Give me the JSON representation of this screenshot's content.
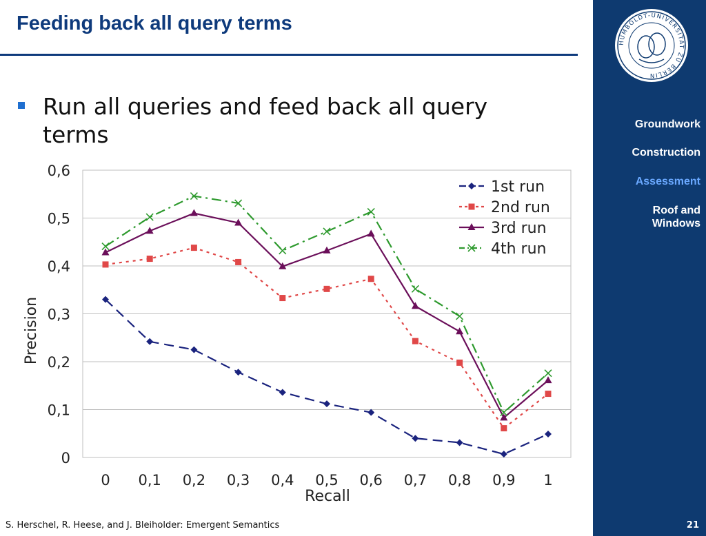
{
  "slide": {
    "title": "Feeding back all query terms",
    "bullet": "Run all queries and feed back all query terms",
    "footer": "S. Herschel, R. Heese, and J. Bleiholder: Emergent Semantics",
    "page_number": "21"
  },
  "sidebar": {
    "nav": [
      {
        "label": "Groundwork",
        "active": false
      },
      {
        "label": "Construction",
        "active": false
      },
      {
        "label": "Assessment",
        "active": true
      },
      {
        "label": "Roof and Windows",
        "active": false
      }
    ],
    "seal_text": "HUMBOLDT-UNIVERSITÄT ZU BERLIN"
  },
  "colors": {
    "title": "#0e3a7c",
    "sidebar": "#0e3a70",
    "active_nav": "#6aa8ff",
    "bullet": "#1f6fd0"
  },
  "chart_data": {
    "type": "line",
    "title": "",
    "xlabel": "Recall",
    "ylabel": "Precision",
    "categories": [
      "0",
      "0,1",
      "0,2",
      "0,3",
      "0,4",
      "0,5",
      "0,6",
      "0,7",
      "0,8",
      "0,9",
      "1"
    ],
    "yticks": [
      "0",
      "0,1",
      "0,2",
      "0,3",
      "0,4",
      "0,5",
      "0,6"
    ],
    "ylim": [
      0,
      0.6
    ],
    "grid": true,
    "legend_position": "top-right",
    "series": [
      {
        "name": "1st run",
        "color": "#1a237e",
        "marker": "diamond",
        "dash": "dashed",
        "values": [
          0.33,
          0.242,
          0.225,
          0.178,
          0.136,
          0.112,
          0.094,
          0.04,
          0.031,
          0.007,
          0.049
        ]
      },
      {
        "name": "2nd run",
        "color": "#e04848",
        "marker": "square",
        "dash": "dotted",
        "values": [
          0.403,
          0.415,
          0.438,
          0.408,
          0.333,
          0.352,
          0.373,
          0.243,
          0.198,
          0.061,
          0.133
        ]
      },
      {
        "name": "3rd run",
        "color": "#6b0f5a",
        "marker": "triangle",
        "dash": "solid",
        "values": [
          0.428,
          0.473,
          0.51,
          0.49,
          0.399,
          0.432,
          0.467,
          0.316,
          0.263,
          0.083,
          0.161
        ]
      },
      {
        "name": "4th run",
        "color": "#2e9a2e",
        "marker": "x",
        "dash": "dashdot",
        "values": [
          0.441,
          0.502,
          0.546,
          0.531,
          0.432,
          0.472,
          0.513,
          0.352,
          0.295,
          0.094,
          0.176
        ]
      }
    ]
  }
}
